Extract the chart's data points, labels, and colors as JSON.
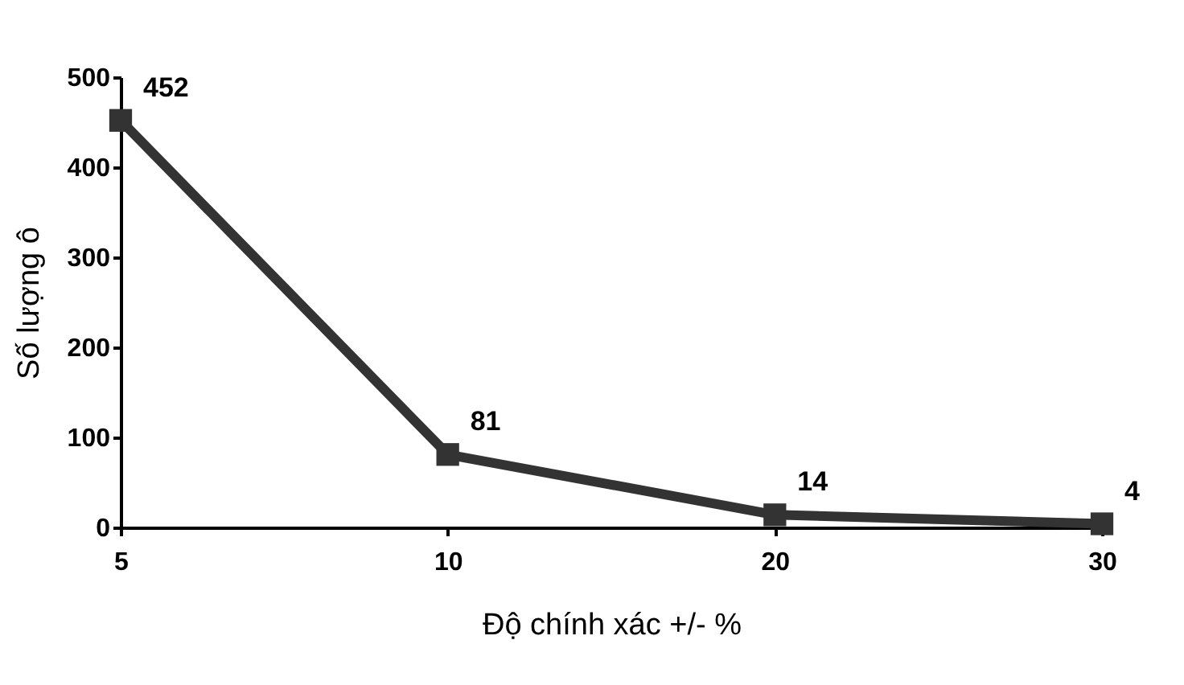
{
  "chart_data": {
    "type": "line",
    "xlabel": "Độ chính xác +/- %",
    "ylabel": "Số lượng ô",
    "categories": [
      "5",
      "10",
      "20",
      "30"
    ],
    "series": [
      {
        "color": "#333333",
        "values": [
          452,
          81,
          14,
          4
        ]
      }
    ],
    "ylim": [
      0,
      500
    ],
    "yticks": [
      0,
      100,
      200,
      300,
      400,
      500
    ],
    "marker": "square",
    "line_style": "solid",
    "data_labels": true,
    "grid": false,
    "legend": false
  }
}
